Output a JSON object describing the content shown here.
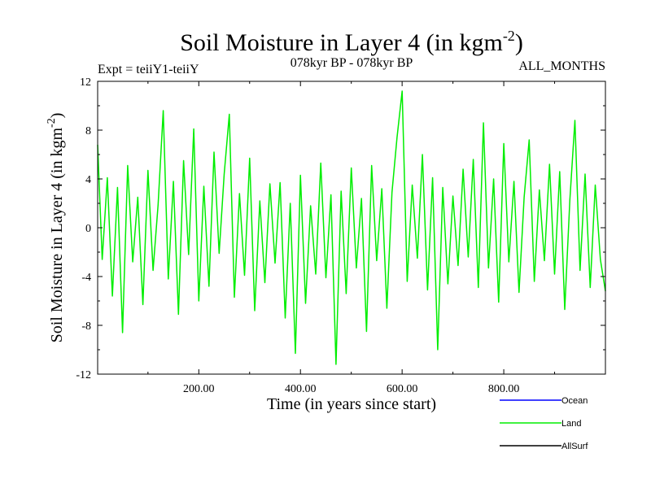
{
  "chart_data": {
    "type": "line",
    "title": "Soil Moisture in Layer 4 (in kgm",
    "title_sup": "-2",
    "title_end": ")",
    "subtitle_left": "Expt = teiiY1-teiiY",
    "subtitle_center": "078kyr BP - 078kyr BP",
    "subtitle_right": "ALL_MONTHS",
    "xlabel": "Time (in years since start)",
    "ylabel": "Soil Moisture in Layer 4 (in kgm",
    "ylabel_sup": "-2",
    "ylabel_end": ")",
    "xlim": [
      1,
      1000
    ],
    "ylim": [
      -12,
      12
    ],
    "x_ticks": [
      200,
      400,
      600,
      800
    ],
    "x_tick_labels": [
      "200.00",
      "400.00",
      "600.00",
      "800.00"
    ],
    "y_ticks": [
      -12,
      -8,
      -4,
      0,
      4,
      8,
      12
    ],
    "y_tick_labels": [
      "-12",
      "-8",
      "-4",
      "0",
      "4",
      "8",
      "12"
    ],
    "series": [
      {
        "name": "Ocean",
        "color": "#0000ff",
        "x": [],
        "y": []
      },
      {
        "name": "Land",
        "color": "#00ee00",
        "x": [
          1,
          10,
          20,
          30,
          40,
          50,
          60,
          70,
          80,
          90,
          100,
          110,
          120,
          130,
          140,
          150,
          160,
          170,
          180,
          190,
          200,
          210,
          220,
          230,
          240,
          250,
          260,
          270,
          280,
          290,
          300,
          310,
          320,
          330,
          340,
          350,
          360,
          370,
          380,
          390,
          400,
          410,
          420,
          430,
          440,
          450,
          460,
          470,
          480,
          490,
          500,
          510,
          520,
          530,
          540,
          550,
          560,
          570,
          580,
          590,
          600,
          610,
          620,
          630,
          640,
          650,
          660,
          670,
          680,
          690,
          700,
          710,
          720,
          730,
          740,
          750,
          760,
          770,
          780,
          790,
          800,
          810,
          820,
          830,
          840,
          850,
          860,
          870,
          880,
          890,
          900,
          910,
          920,
          930,
          940,
          950,
          960,
          970,
          980,
          990,
          1000
        ],
        "y": [
          6.8,
          -2.6,
          4.1,
          -5.6,
          3.3,
          -8.6,
          5.1,
          -2.8,
          2.5,
          -6.3,
          4.7,
          -3.5,
          1.9,
          9.6,
          -4.2,
          3.8,
          -7.1,
          5.5,
          -2.2,
          8.1,
          -6.0,
          3.4,
          -4.8,
          6.2,
          -2.1,
          4.4,
          9.3,
          -5.7,
          2.8,
          -3.9,
          5.7,
          -6.8,
          2.2,
          -4.5,
          3.6,
          -2.9,
          3.7,
          -7.4,
          2.0,
          -10.3,
          4.3,
          -6.2,
          1.8,
          -3.8,
          5.3,
          -4.1,
          2.7,
          -11.2,
          3.0,
          -5.4,
          4.9,
          -3.3,
          2.4,
          -8.5,
          5.1,
          -2.7,
          3.2,
          -6.6,
          2.9,
          7.4,
          11.2,
          -4.4,
          3.5,
          -2.5,
          6.0,
          -5.1,
          4.1,
          -10.0,
          3.3,
          -4.6,
          2.6,
          -3.1,
          4.8,
          -2.4,
          5.6,
          -4.9,
          8.6,
          -3.3,
          4.0,
          -6.1,
          6.9,
          -2.8,
          3.8,
          -5.3,
          2.5,
          7.2,
          -4.4,
          3.1,
          -2.7,
          5.2,
          -3.8,
          4.6,
          -6.7,
          2.3,
          8.8,
          -3.5,
          4.4,
          -4.9,
          3.5,
          -2.6,
          -5.2
        ]
      },
      {
        "name": "AllSurf",
        "color": "#000000",
        "x": [],
        "y": []
      }
    ],
    "legend_placement": "bottom-right",
    "grid": false
  }
}
